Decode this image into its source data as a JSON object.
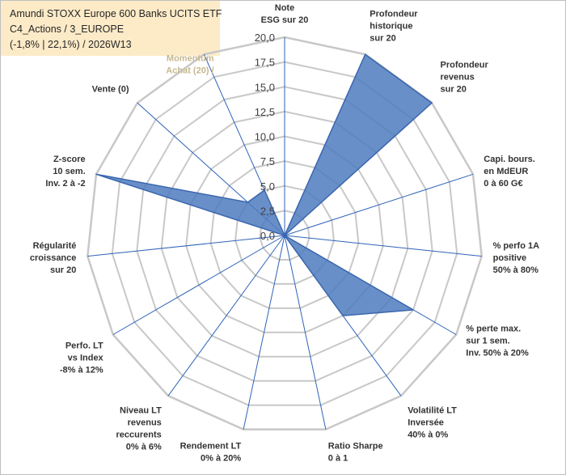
{
  "header": {
    "fund_name": "Amundi STOXX Europe 600 Banks UCITS ETF",
    "category": "C4_Actions / 3_EUROPE",
    "perf_summary": "(-1,8% | 22,1%) / 2026W13"
  },
  "chart_data": {
    "type": "radar",
    "r_min": 0,
    "r_max": 20,
    "r_step": 2.5,
    "tick_labels": [
      "0,0",
      "2,5",
      "5,0",
      "7,5",
      "10,0",
      "12,5",
      "15,0",
      "17,5",
      "20,0"
    ],
    "axes": [
      {
        "lines": [
          "Note",
          "ESG sur 20"
        ],
        "value": 0
      },
      {
        "lines": [
          "Profondeur",
          "historique",
          "sur 20"
        ],
        "value": 20
      },
      {
        "lines": [
          "Profondeur",
          "revenus",
          "sur 20"
        ],
        "value": 20
      },
      {
        "lines": [
          "Capi. bours.",
          "en MdEUR",
          "0 à 60 G€"
        ],
        "value": 0
      },
      {
        "lines": [
          "% perfo 1A",
          "positive",
          "50% à 80%"
        ],
        "value": 0
      },
      {
        "lines": [
          "% perte max.",
          "sur 1 sem.",
          "Inv. 50% à 20%"
        ],
        "value": 15
      },
      {
        "lines": [
          "Volatilité LT",
          "Inversée",
          "40% à 0%"
        ],
        "value": 10
      },
      {
        "lines": [
          "Ratio Sharpe",
          "0 à 1"
        ],
        "value": 0
      },
      {
        "lines": [
          "Rendement LT",
          "0% à 20%"
        ],
        "value": 0
      },
      {
        "lines": [
          "Niveau LT",
          "revenus",
          "reccurents",
          "0% à 6%"
        ],
        "value": 0
      },
      {
        "lines": [
          "Perfo. LT",
          "vs Index",
          "-8% à 12%"
        ],
        "value": 0
      },
      {
        "lines": [
          "Régularité",
          "croissance",
          "sur 20"
        ],
        "value": 0
      },
      {
        "lines": [
          "Z-score",
          "10 sem.",
          "Inv. 2 à -2"
        ],
        "value": 20
      },
      {
        "lines": [
          "Vente (0)"
        ],
        "value": 5
      },
      {
        "lines": [
          "Momentum",
          "Achat (20) /"
        ],
        "value": 5
      }
    ],
    "series": [
      {
        "name": "Amundi STOXX Europe 600 Banks UCITS ETF",
        "color": "#4f7bbf"
      }
    ],
    "colors": {
      "fill": "#4f7bbf",
      "outline": "#3b67ae",
      "spoke": "#2e63b8",
      "grid": "#c8c8c8",
      "title_bg": "#fdebc8"
    }
  }
}
